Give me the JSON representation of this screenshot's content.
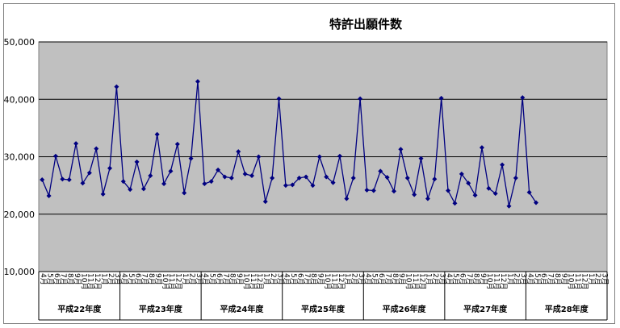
{
  "chart_data": {
    "type": "line",
    "title": "特許出願件数",
    "xlabel": "",
    "ylabel": "",
    "ylim": [
      10000,
      50000
    ],
    "yticks": [
      "10,000",
      "20,000",
      "30,000",
      "40,000",
      "50,000"
    ],
    "grid": true,
    "legend": "none",
    "colors": {
      "plot_bg": "#c0c0c0",
      "line": "#000080",
      "grid": "#000000"
    },
    "fiscal_years": [
      "平成22年度",
      "平成23年度",
      "平成24年度",
      "平成25年度",
      "平成26年度",
      "平成27年度",
      "平成28年度"
    ],
    "month_labels": [
      "4月",
      "5月",
      "6月",
      "7月",
      "8月",
      "9月",
      "10月",
      "11月",
      "12月",
      "1月",
      "2月",
      "3月"
    ],
    "series": [
      {
        "values": [
          26000,
          23200,
          30100,
          26100,
          26000,
          32300,
          25400,
          27200,
          31400,
          23500,
          28000,
          42200,
          25700,
          24300,
          29100,
          24400,
          26700,
          33900,
          25300,
          27500,
          32200,
          23700,
          29700,
          43100,
          25300,
          25700,
          27700,
          26500,
          26300,
          30900,
          27000,
          26700,
          30000,
          22200,
          26300,
          40100,
          25000,
          25100,
          26300,
          26500,
          25000,
          30000,
          26500,
          25500,
          30100,
          22700,
          26300,
          40100,
          24200,
          24100,
          27500,
          26400,
          24000,
          31300,
          26300,
          23400,
          29700,
          22700,
          26100,
          40200,
          24100,
          21900,
          27000,
          25400,
          23300,
          31600,
          24500,
          23600,
          28600,
          21400,
          26300,
          40300,
          23800,
          22000
        ]
      }
    ]
  }
}
